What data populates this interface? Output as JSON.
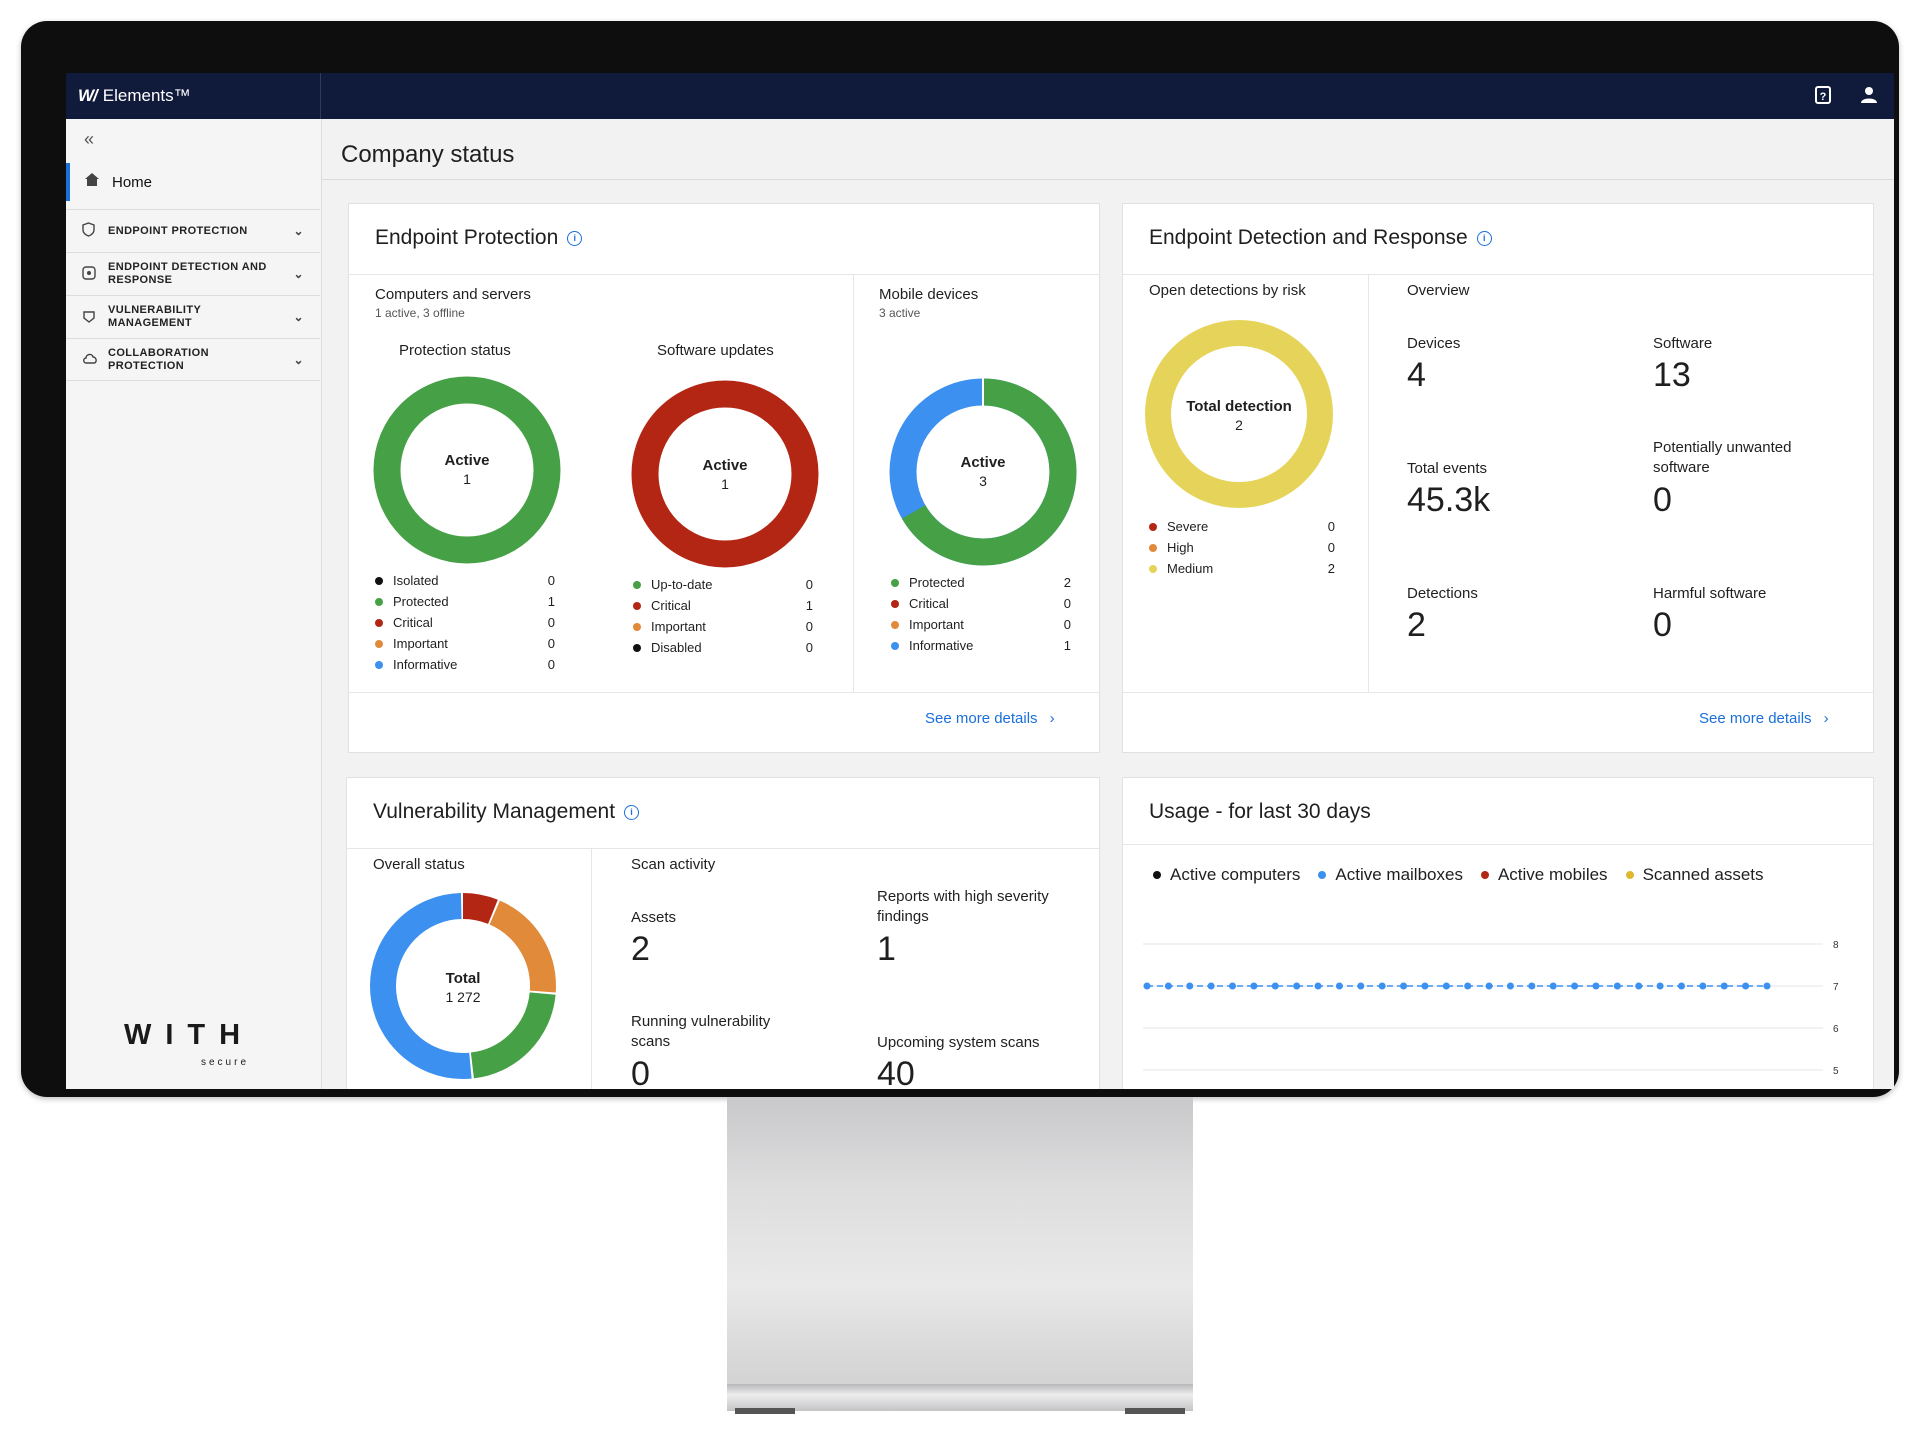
{
  "app": {
    "brand_mark": "W/",
    "brand_name": "Elements™"
  },
  "topbar": {
    "help_icon": "help-icon",
    "user_icon": "user-icon"
  },
  "sidebar": {
    "collapse_icon": "«",
    "home_label": "Home",
    "items": [
      {
        "label": "ENDPOINT PROTECTION"
      },
      {
        "label": "ENDPOINT DETECTION AND RESPONSE"
      },
      {
        "label": "VULNERABILITY MANAGEMENT"
      },
      {
        "label": "COLLABORATION PROTECTION"
      }
    ],
    "logo_text": "WITH",
    "logo_sub": "secure"
  },
  "page": {
    "title": "Company status"
  },
  "ep": {
    "title": "Endpoint Protection",
    "computers_title": "Computers and servers",
    "computers_sub": "1 active, 3 offline",
    "mobile_title": "Mobile devices",
    "mobile_sub": "3 active",
    "protection": {
      "title": "Protection status",
      "center_label": "Active",
      "center_value": "1",
      "legend": [
        {
          "label": "Isolated",
          "value": "0",
          "color": "#111111"
        },
        {
          "label": "Protected",
          "value": "1",
          "color": "#46a046"
        },
        {
          "label": "Critical",
          "value": "0",
          "color": "#b32614"
        },
        {
          "label": "Important",
          "value": "0",
          "color": "#e08a3a"
        },
        {
          "label": "Informative",
          "value": "0",
          "color": "#3b90f0"
        }
      ]
    },
    "updates": {
      "title": "Software updates",
      "center_label": "Active",
      "center_value": "1",
      "legend": [
        {
          "label": "Up-to-date",
          "value": "0",
          "color": "#46a046"
        },
        {
          "label": "Critical",
          "value": "1",
          "color": "#b32614"
        },
        {
          "label": "Important",
          "value": "0",
          "color": "#e08a3a"
        },
        {
          "label": "Disabled",
          "value": "0",
          "color": "#111111"
        }
      ]
    },
    "mobile": {
      "center_label": "Active",
      "center_value": "3",
      "legend": [
        {
          "label": "Protected",
          "value": "2",
          "color": "#46a046"
        },
        {
          "label": "Critical",
          "value": "0",
          "color": "#b32614"
        },
        {
          "label": "Important",
          "value": "0",
          "color": "#e08a3a"
        },
        {
          "label": "Informative",
          "value": "1",
          "color": "#3b90f0"
        }
      ]
    },
    "see_more": "See more details"
  },
  "edr": {
    "title": "Endpoint Detection and Response",
    "risk_title": "Open detections by risk",
    "center_label": "Total detection",
    "center_value": "2",
    "legend": [
      {
        "label": "Severe",
        "value": "0",
        "color": "#b32614"
      },
      {
        "label": "High",
        "value": "0",
        "color": "#e08a3a"
      },
      {
        "label": "Medium",
        "value": "2",
        "color": "#e6d45a"
      }
    ],
    "overview_title": "Overview",
    "stats": [
      {
        "label": "Devices",
        "value": "4"
      },
      {
        "label": "Software",
        "value": "13"
      },
      {
        "label": "Total events",
        "value": "45.3k"
      },
      {
        "label": "Potentially unwanted software",
        "value": "0"
      },
      {
        "label": "Detections",
        "value": "2"
      },
      {
        "label": "Harmful software",
        "value": "0"
      }
    ],
    "see_more": "See more details"
  },
  "vm": {
    "title": "Vulnerability Management",
    "overall_title": "Overall status",
    "center_label": "Total",
    "center_value": "1 272",
    "segments": [
      {
        "color": "#b32614",
        "fraction": 0.065
      },
      {
        "color": "#e08a3a",
        "fraction": 0.2
      },
      {
        "color": "#46a046",
        "fraction": 0.22
      },
      {
        "color": "#3b90f0",
        "fraction": 0.515
      }
    ],
    "scan_title": "Scan activity",
    "stats": [
      {
        "label": "Assets",
        "value": "2"
      },
      {
        "label": "Reports with high severity findings",
        "value": "1"
      },
      {
        "label": "Running vulnerability scans",
        "value": "0"
      },
      {
        "label": "Upcoming system scans",
        "value": "40"
      }
    ]
  },
  "usage": {
    "title": "Usage - for last 30 days",
    "legend": [
      {
        "label": "Active computers",
        "color": "#111111"
      },
      {
        "label": "Active mailboxes",
        "color": "#3b90f0"
      },
      {
        "label": "Active mobiles",
        "color": "#b32614"
      },
      {
        "label": "Scanned assets",
        "color": "#e0b830"
      }
    ],
    "y_ticks": [
      "8",
      "7",
      "6",
      "5"
    ]
  },
  "chart_data": {
    "type": "line",
    "title": "Usage - for last 30 days",
    "series": [
      {
        "name": "Active mailboxes",
        "values": [
          7,
          7,
          7,
          7,
          7,
          7,
          7,
          7,
          7,
          7,
          7,
          7,
          7,
          7,
          7,
          7,
          7,
          7,
          7,
          7,
          7,
          7,
          7,
          7,
          7,
          7,
          7,
          7,
          7,
          7
        ]
      }
    ],
    "ylim": [
      5,
      8
    ],
    "grid": true,
    "legend": "top"
  }
}
